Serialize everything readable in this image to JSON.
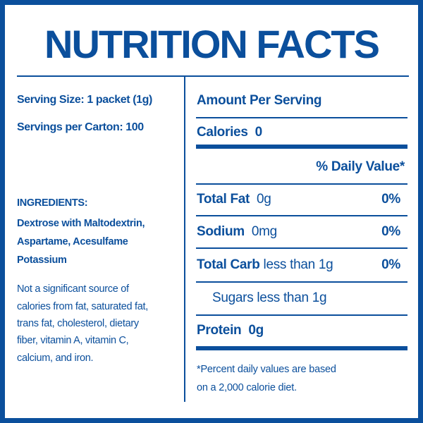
{
  "title": "NUTRITION FACTS",
  "left": {
    "serving_size": "Serving Size: 1 packet (1g)",
    "servings_per": "Servings per Carton: 100",
    "ingredients_heading": "INGREDIENTS:",
    "ingredients_lines": [
      "Dextrose with Maltodextrin,",
      "Aspartame, Acesulfame",
      "Potassium"
    ],
    "note_lines": [
      "Not a significant source of",
      "calories from fat, saturated fat,",
      "trans fat, cholesterol, dietary",
      "fiber, vitamin A, vitamin C,",
      "calcium, and iron."
    ]
  },
  "right": {
    "amount_per_serving": "Amount Per Serving",
    "calories_label": "Calories",
    "calories_value": "0",
    "daily_value_header": "% Daily Value*",
    "nutrients": [
      {
        "name": "Total Fat",
        "amount": "0g",
        "dv": "0%"
      },
      {
        "name": "Sodium",
        "amount": "0mg",
        "dv": "0%"
      },
      {
        "name": "Total Carb",
        "amount": "less than 1g",
        "dv": "0%"
      }
    ],
    "sugars": "Sugars less than 1g",
    "protein_label": "Protein",
    "protein_value": "0g",
    "footnote_lines": [
      "*Percent daily values are based",
      "on a 2,000 calorie diet."
    ]
  },
  "colors": {
    "brand_blue": "#0b4f9c"
  }
}
